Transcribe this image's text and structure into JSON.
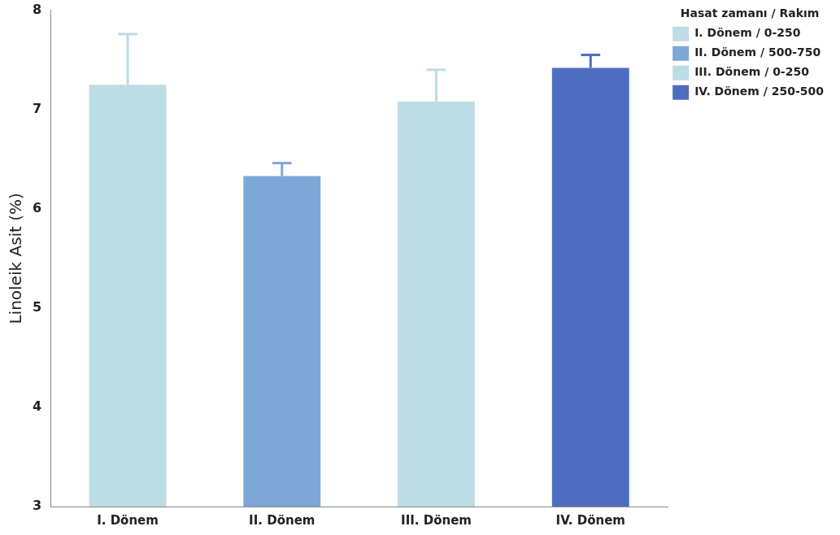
{
  "chart_data": {
    "type": "bar",
    "ylabel": "Linoleik Asit (%)",
    "legend_title": "Hasat zamanı / Rakım",
    "categories": [
      "I. Dönem",
      "II. Dönem",
      "III. Dönem",
      "IV. Dönem"
    ],
    "series": [
      {
        "name": "I. Dönem / 0-250",
        "color": "#bcdce6",
        "values": [
          7.25,
          null,
          null,
          null
        ],
        "errors": [
          [
            7.25,
            7.76
          ],
          null,
          null,
          null
        ]
      },
      {
        "name": "II. Dönem / 500-750",
        "color": "#7ea7d8",
        "values": [
          null,
          6.33,
          null,
          null
        ],
        "errors": [
          null,
          [
            6.33,
            6.46
          ],
          null,
          null
        ]
      },
      {
        "name": "III. Dönem / 0-250",
        "color": "#bcdce6",
        "values": [
          null,
          null,
          7.08,
          null
        ],
        "errors": [
          null,
          null,
          [
            7.08,
            7.4
          ],
          null
        ]
      },
      {
        "name": "IV. Dönem / 250-500",
        "color": "#4d6ec0",
        "values": [
          null,
          null,
          null,
          7.42
        ],
        "errors": [
          null,
          null,
          null,
          [
            7.42,
            7.55
          ]
        ]
      }
    ],
    "ylim": [
      3,
      8
    ],
    "yticks": [
      3,
      4,
      5,
      6,
      7,
      8
    ],
    "grid": false,
    "legend": "top right"
  }
}
